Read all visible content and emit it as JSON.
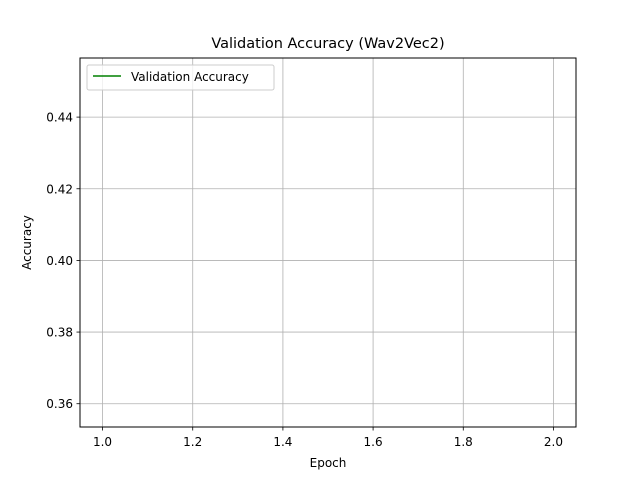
{
  "chart_data": {
    "type": "line",
    "title": "Validation Accuracy (Wav2Vec2)",
    "xlabel": "Epoch",
    "ylabel": "Accuracy",
    "xlim": [
      0.95,
      2.05
    ],
    "ylim": [
      0.3535,
      0.4565
    ],
    "xticks": [
      1.0,
      1.2,
      1.4,
      1.6,
      1.8,
      2.0
    ],
    "xtick_labels": [
      "1.0",
      "1.2",
      "1.4",
      "1.6",
      "1.8",
      "2.0"
    ],
    "yticks": [
      0.36,
      0.38,
      0.4,
      0.42,
      0.44
    ],
    "ytick_labels": [
      "0.36",
      "0.38",
      "0.40",
      "0.42",
      "0.44"
    ],
    "grid": true,
    "legend_position": "upper-left",
    "series": [
      {
        "name": "Validation Accuracy",
        "color": "#008000",
        "x": [],
        "y": []
      }
    ]
  }
}
